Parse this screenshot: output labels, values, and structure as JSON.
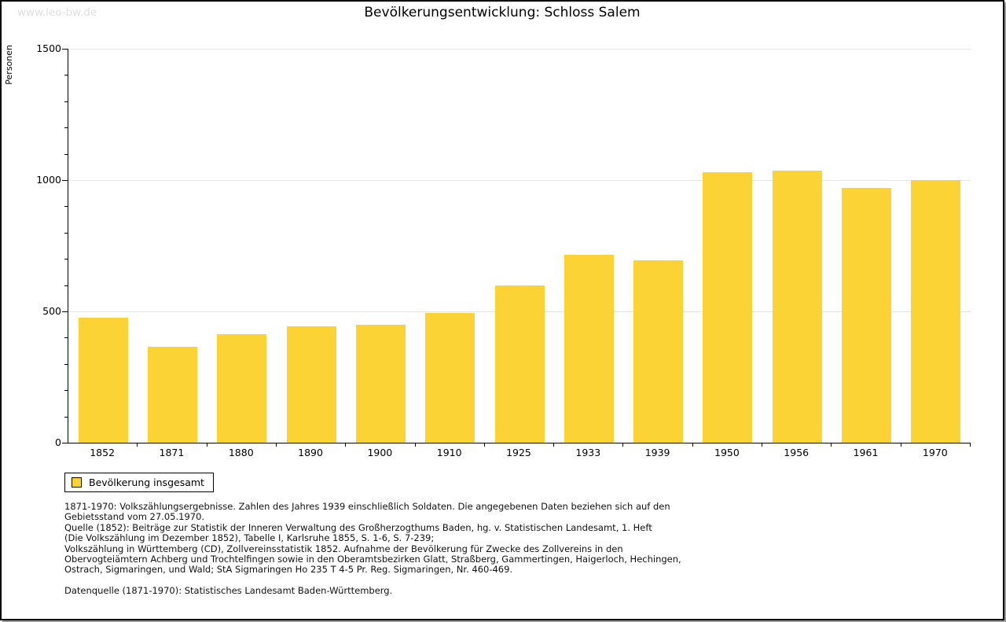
{
  "page": {
    "watermark": "www.leo-bw.de",
    "title": "Bevölkerungsentwicklung: Schloss Salem"
  },
  "chart_data": {
    "type": "bar",
    "title": "Bevölkerungsentwicklung: Schloss Salem",
    "xlabel": "",
    "ylabel": "Personen",
    "categories": [
      "1852",
      "1871",
      "1880",
      "1890",
      "1900",
      "1910",
      "1925",
      "1933",
      "1939",
      "1950",
      "1956",
      "1961",
      "1970"
    ],
    "values": [
      475,
      366,
      412,
      443,
      448,
      494,
      600,
      716,
      696,
      1031,
      1036,
      969,
      1000
    ],
    "series_name": "Bevölkerung insgesamt",
    "ylim": [
      0,
      1500
    ],
    "yticks": [
      0,
      500,
      1000,
      1500
    ],
    "minor_tick_step": 100,
    "grid": true,
    "legend_position": "bottom-left",
    "bar_color": "#FCD334"
  },
  "legend": {
    "label": "Bevölkerung insgesamt",
    "swatch_color": "#FCD334"
  },
  "footnotes": {
    "lines": [
      "1871-1970: Volkszählungsergebnisse. Zahlen des Jahres 1939 einschließlich Soldaten. Die angegebenen Daten beziehen sich auf den",
      "Gebietsstand vom 27.05.1970.",
      "Quelle (1852): Beiträge zur Statistik der Inneren Verwaltung des Großherzogthums Baden, hg. v. Statistischen Landesamt, 1. Heft",
      "(Die Volkszählung im Dezember 1852), Tabelle I, Karlsruhe 1855, S. 1-6, S. 7-239;",
      "Volkszählung in Württemberg (CD), Zollvereinsstatistik 1852. Aufnahme der Bevölkerung für Zwecke des Zollvereins in den",
      "Obervogteiämtern Achberg und Trochtelfingen sowie in den Oberamtsbezirken Glatt, Straßberg, Gammertingen, Haigerloch, Hechingen,",
      "Ostrach, Sigmaringen, und Wald; StA Sigmaringen Ho 235 T 4-5 Pr. Reg. Sigmaringen, Nr. 460-469."
    ],
    "datasource": "Datenquelle (1871-1970): Statistisches Landesamt Baden-Württemberg."
  }
}
